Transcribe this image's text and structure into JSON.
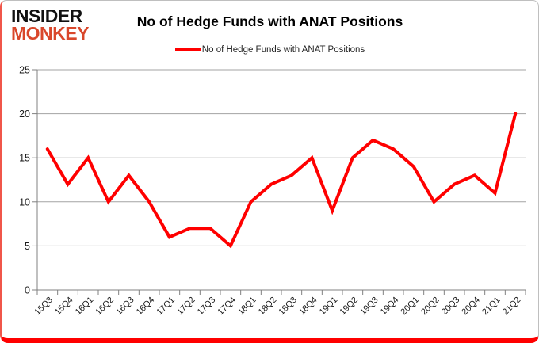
{
  "logo": {
    "line1": "INSIDER",
    "line2": "MONKEY"
  },
  "header": {
    "title": "No of Hedge Funds with ANAT Positions"
  },
  "legend": {
    "label": "No of Hedge Funds with ANAT Positions"
  },
  "chart_data": {
    "type": "line",
    "title": "No of Hedge Funds with ANAT Positions",
    "categories": [
      "15Q3",
      "15Q4",
      "16Q1",
      "16Q2",
      "16Q3",
      "16Q4",
      "17Q1",
      "17Q2",
      "17Q3",
      "17Q4",
      "18Q1",
      "18Q2",
      "18Q3",
      "18Q4",
      "19Q1",
      "19Q2",
      "19Q3",
      "19Q4",
      "20Q1",
      "20Q2",
      "20Q3",
      "20Q4",
      "21Q1",
      "21Q2"
    ],
    "series": [
      {
        "name": "No of Hedge Funds with ANAT Positions",
        "color": "#ff0000",
        "values": [
          16,
          12,
          15,
          10,
          13,
          10,
          6,
          7,
          7,
          5,
          10,
          12,
          13,
          15,
          9,
          15,
          17,
          16,
          14,
          10,
          12,
          13,
          11,
          20
        ]
      }
    ],
    "xlabel": "",
    "ylabel": "",
    "ylim": [
      0,
      25
    ],
    "yticks": [
      0,
      5,
      10,
      15,
      20,
      25
    ],
    "grid": true,
    "legend_position": "top"
  },
  "colors": {
    "line_red": "#ff0000",
    "logo_red": "#d9472b",
    "gridline": "#a3a3a3",
    "axis": "#808080",
    "tick_text": "#1a1a1a"
  }
}
